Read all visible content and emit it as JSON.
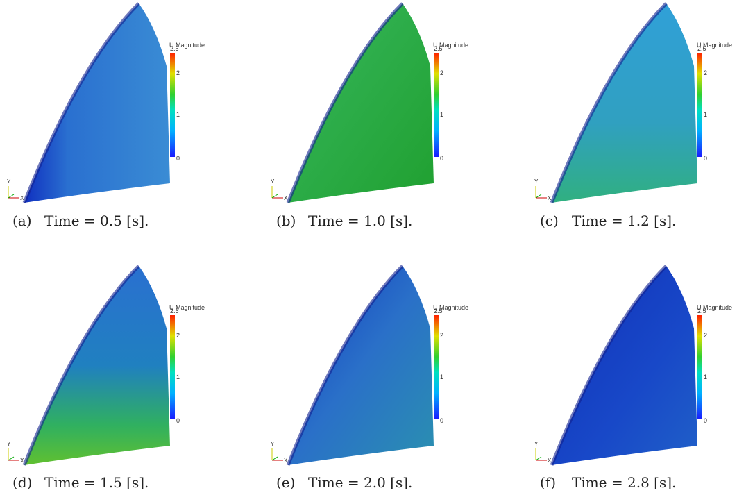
{
  "colorbar": {
    "title": "U Magnitude",
    "ticks": [
      "2.5",
      "2",
      "1",
      "0"
    ]
  },
  "axes": {
    "y": "Y",
    "x": "X"
  },
  "panels": [
    {
      "label": "(a)",
      "caption": "Time = 0.5 [s]."
    },
    {
      "label": "(b)",
      "caption": "Time = 1.0 [s]."
    },
    {
      "label": "(c)",
      "caption": "Time = 1.2 [s]."
    },
    {
      "label": "(d)",
      "caption": "Time = 1.5 [s]."
    },
    {
      "label": "(e)",
      "caption": "Time = 2.0 [s]."
    },
    {
      "label": "(f)",
      "caption": "Time = 2.8 [s]."
    }
  ]
}
